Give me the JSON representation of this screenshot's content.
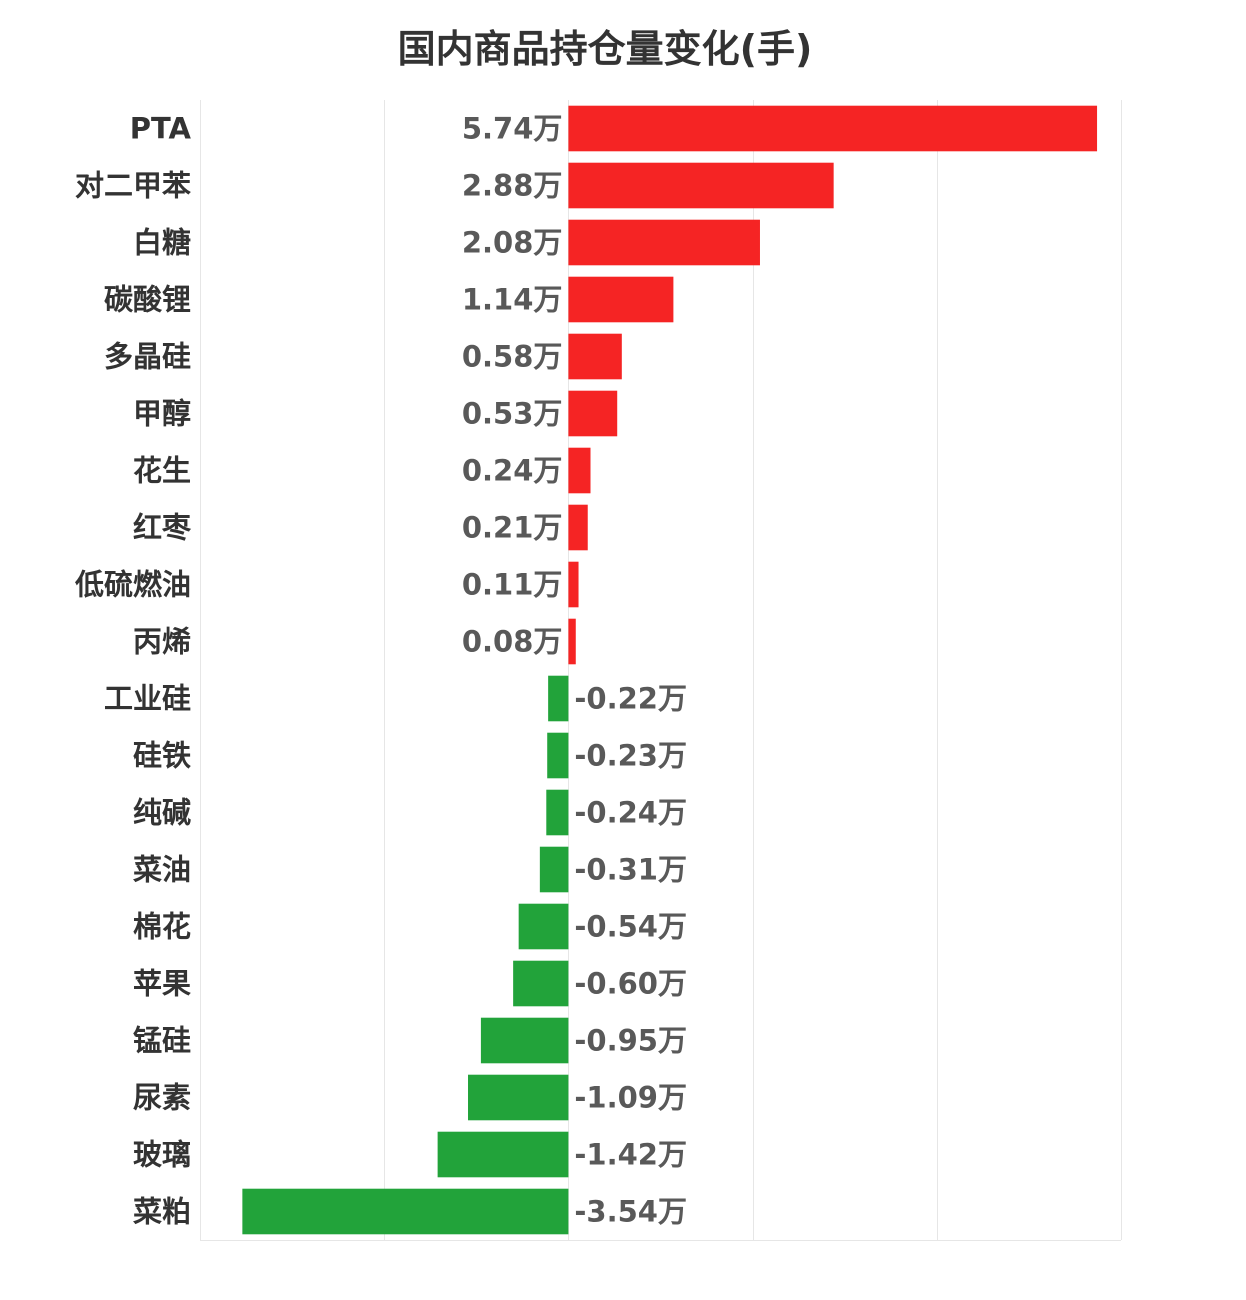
{
  "chart_data": {
    "type": "bar",
    "orientation": "horizontal",
    "title": "国内商品持仓量变化(手)",
    "categories": [
      "PTA",
      "对二甲苯",
      "白糖",
      "碳酸锂",
      "多晶硅",
      "甲醇",
      "花生",
      "红枣",
      "低硫燃油",
      "丙烯",
      "工业硅",
      "硅铁",
      "纯碱",
      "菜油",
      "棉花",
      "苹果",
      "锰硅",
      "尿素",
      "玻璃",
      "菜粕"
    ],
    "values": [
      5.74,
      2.88,
      2.08,
      1.14,
      0.58,
      0.53,
      0.24,
      0.21,
      0.11,
      0.08,
      -0.22,
      -0.23,
      -0.24,
      -0.31,
      -0.54,
      -0.6,
      -0.95,
      -1.09,
      -1.42,
      -3.54
    ],
    "value_labels": [
      "5.74万",
      "2.88万",
      "2.08万",
      "1.14万",
      "0.58万",
      "0.53万",
      "0.24万",
      "0.21万",
      "0.11万",
      "0.08万",
      "-0.22万",
      "-0.23万",
      "-0.24万",
      "-0.31万",
      "-0.54万",
      "-0.60万",
      "-0.95万",
      "-1.09万",
      "-1.42万",
      "-3.54万"
    ],
    "unit": "万",
    "xlim": [
      -4,
      6
    ],
    "grid": true,
    "legend": "none",
    "colors": {
      "positive": "#f52424",
      "negative": "#22a33a",
      "grid": "#e6e6e6"
    }
  }
}
